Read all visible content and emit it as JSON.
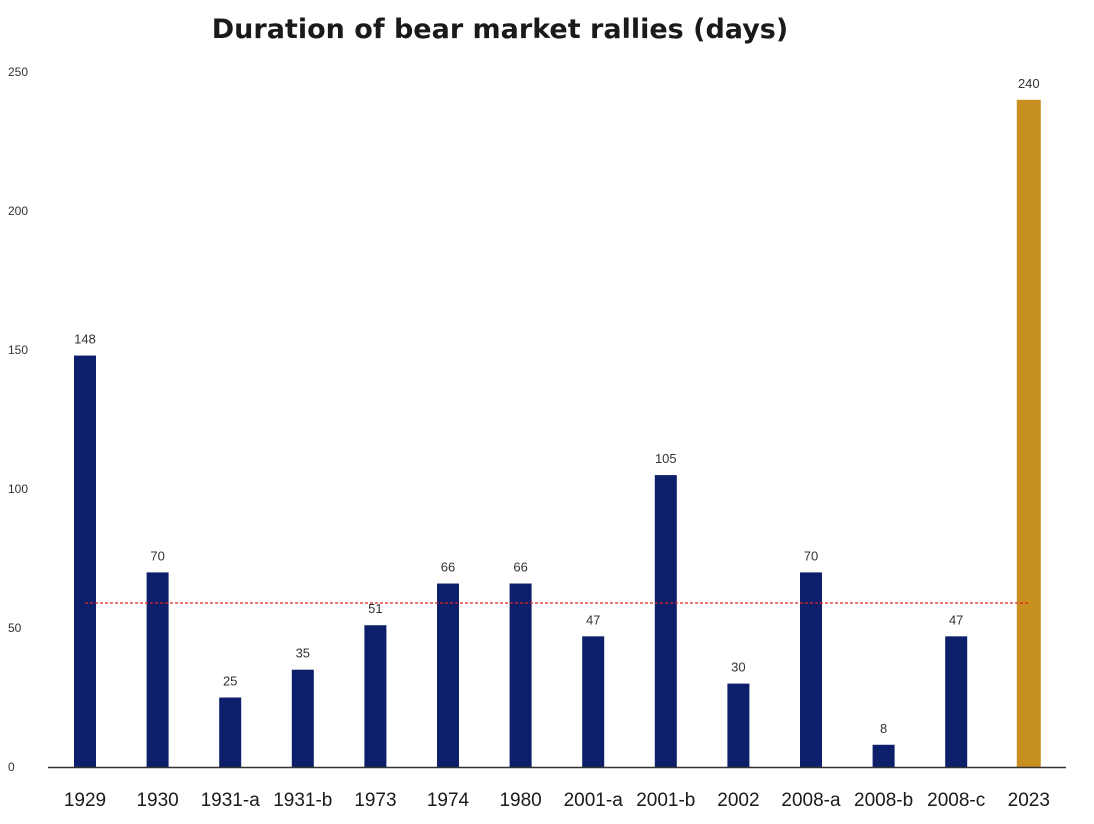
{
  "chart_data": {
    "type": "bar",
    "title": "Duration of bear market rallies (days)",
    "xlabel": "",
    "ylabel": "",
    "ylim": [
      0,
      250
    ],
    "yticks": [
      0,
      50,
      100,
      150,
      200,
      250
    ],
    "categories": [
      "1929",
      "1930",
      "1931-a",
      "1931-b",
      "1973",
      "1974",
      "1980",
      "2001-a",
      "2001-b",
      "2002",
      "2008-a",
      "2008-b",
      "2008-c",
      "2023"
    ],
    "values": [
      148,
      70,
      25,
      35,
      51,
      66,
      66,
      47,
      105,
      30,
      70,
      8,
      47,
      240
    ],
    "data_labels": [
      "148",
      "70",
      "25",
      "35",
      "51",
      "66",
      "66",
      "47",
      "105",
      "30",
      "70",
      "8",
      "47",
      "240"
    ],
    "average_line": 59,
    "colors": {
      "bar": "#0d1f6b",
      "highlight_bar": "#c8901f",
      "average_line": "#e02020",
      "axis": "#333333"
    },
    "highlight_category": "2023",
    "grid": false,
    "legend": "none"
  }
}
